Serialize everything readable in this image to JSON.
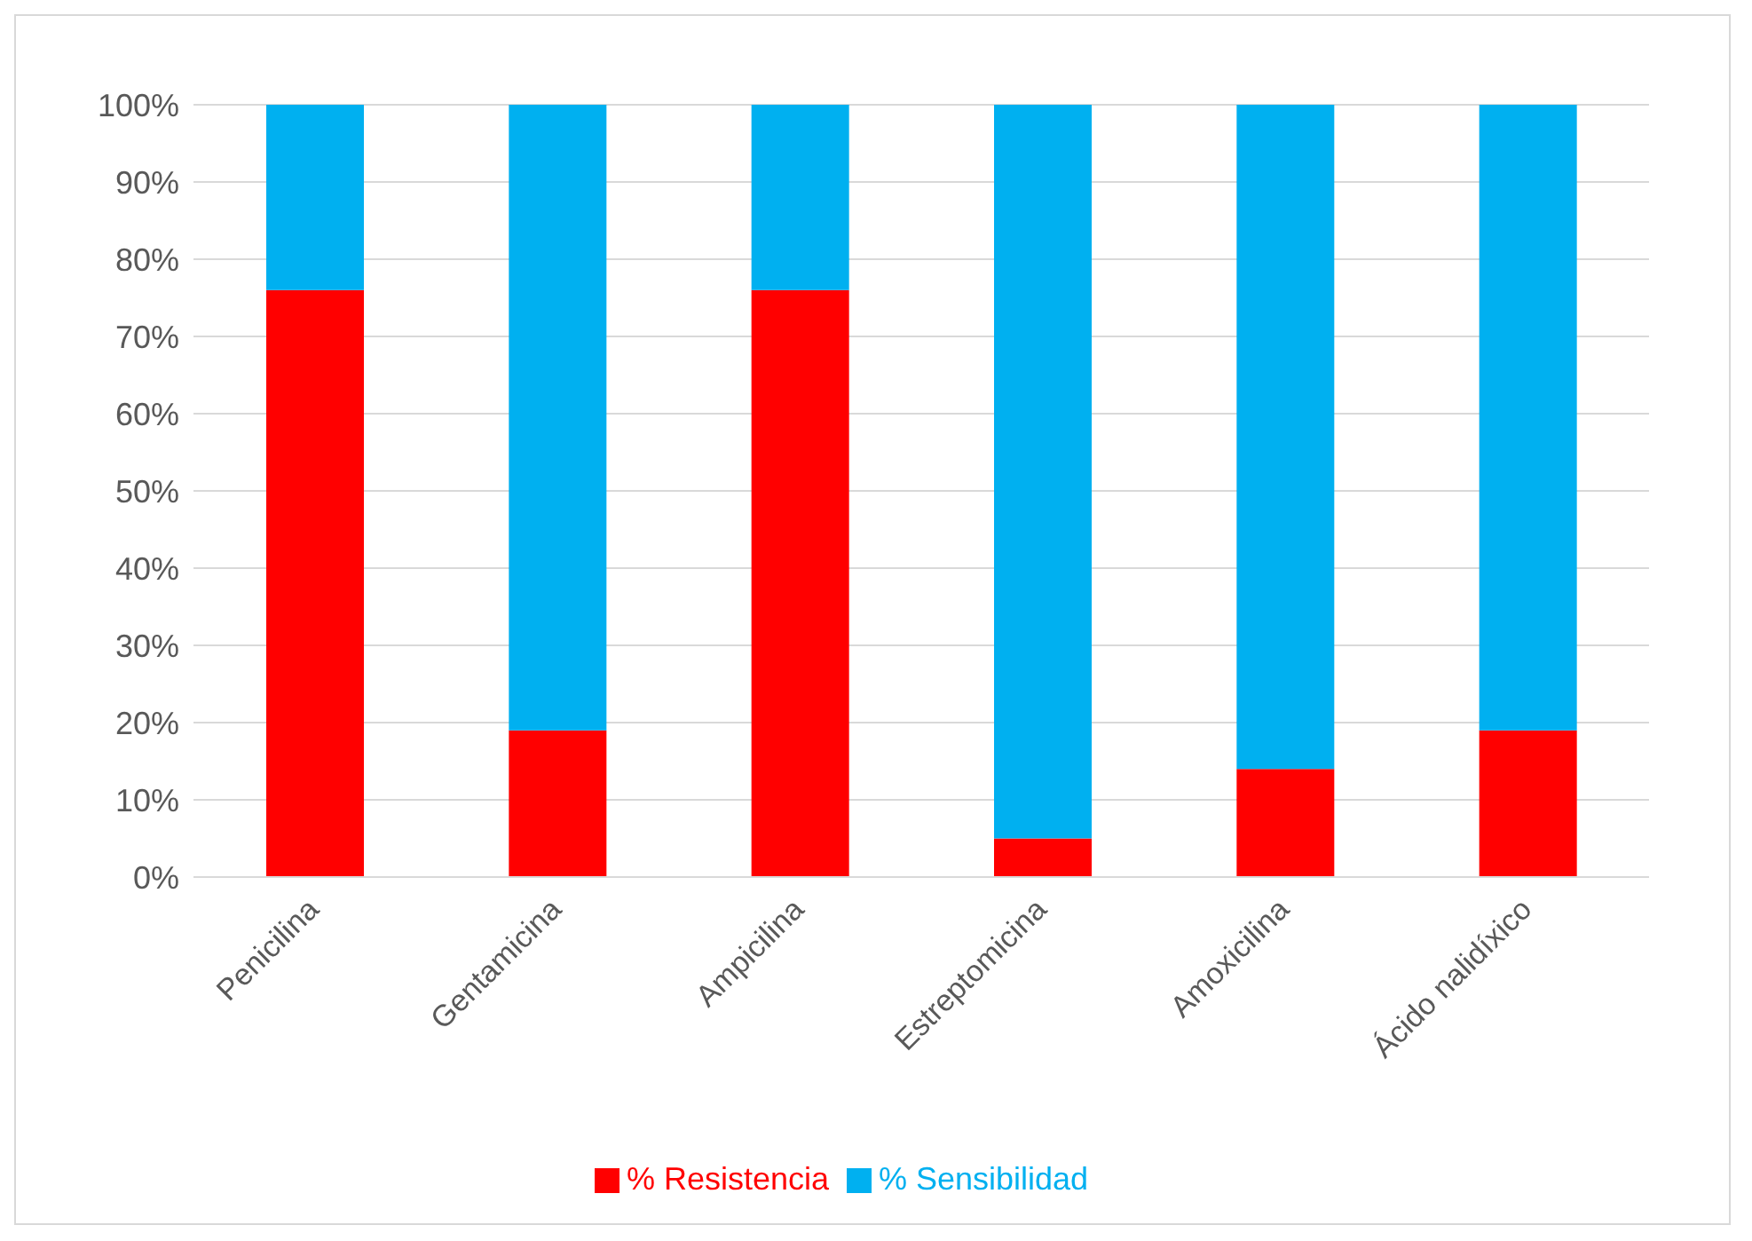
{
  "chart_data": {
    "type": "bar",
    "stacked": true,
    "categories": [
      "Penicilina",
      "Gentamicina",
      "Ampicilina",
      "Estreptomicina",
      "Amoxicilina",
      "Ácido nalidíxico"
    ],
    "series": [
      {
        "name": "% Resistencia",
        "color": "#ff0000",
        "values": [
          76,
          19,
          76,
          5,
          14,
          19
        ]
      },
      {
        "name": "% Sensibilidad",
        "color": "#00b0f0",
        "values": [
          24,
          81,
          24,
          95,
          86,
          81
        ]
      }
    ],
    "ylim": [
      0,
      100
    ],
    "yticks": [
      {
        "value": 0,
        "label": "0%"
      },
      {
        "value": 10,
        "label": "10%"
      },
      {
        "value": 20,
        "label": "20%"
      },
      {
        "value": 30,
        "label": "30%"
      },
      {
        "value": 40,
        "label": "40%"
      },
      {
        "value": 50,
        "label": "50%"
      },
      {
        "value": 60,
        "label": "60%"
      },
      {
        "value": 70,
        "label": "70%"
      },
      {
        "value": 80,
        "label": "80%"
      },
      {
        "value": 90,
        "label": "90%"
      },
      {
        "value": 100,
        "label": "100%"
      }
    ],
    "grid": "y",
    "legend": "bottom"
  }
}
